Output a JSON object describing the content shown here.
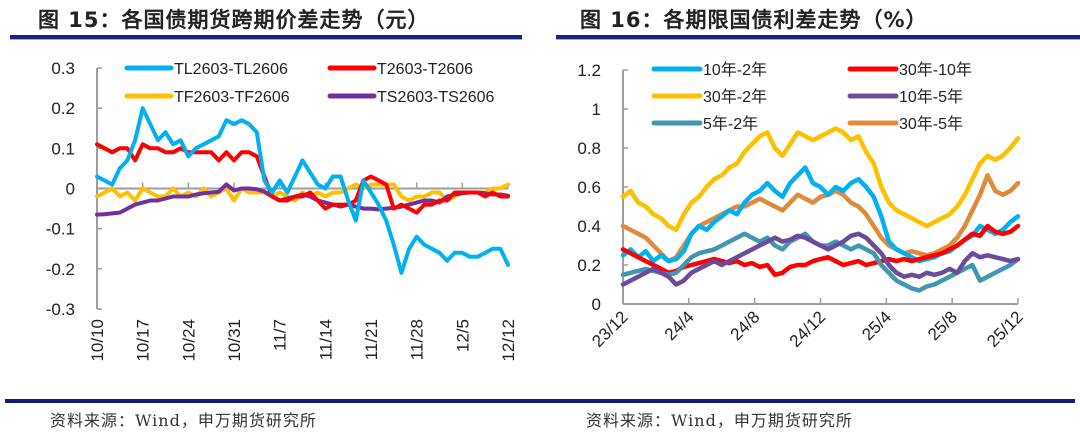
{
  "figures": [
    {
      "title": "图 15：各国债期货跨期价差走势（元）",
      "source": "资料来源：Wind，申万期货研究所"
    },
    {
      "title": "图 16：各期限国债利差走势（%）",
      "source": "资料来源：Wind，申万期货研究所"
    }
  ],
  "chart_data": [
    {
      "type": "line",
      "title": "图 15：各国债期货跨期价差走势（元）",
      "xlabel": "",
      "ylabel": "元",
      "ylim": [
        -0.3,
        0.3
      ],
      "yticks": [
        "0.3",
        "0.2",
        "0.1",
        "0",
        "-0.1",
        "-0.2",
        "-0.3"
      ],
      "ytick_values": [
        0.3,
        0.2,
        0.1,
        0,
        -0.1,
        -0.2,
        -0.3
      ],
      "xticks": [
        "10/10",
        "10/17",
        "10/24",
        "10/31",
        "11/7",
        "11/14",
        "11/21",
        "11/28",
        "12/5",
        "12/12"
      ],
      "grid": false,
      "legend": "top",
      "series": [
        {
          "name": "TL2603-TL2606",
          "color": "#00b0f0",
          "values": [
            0.03,
            0.02,
            0.01,
            0.05,
            0.07,
            0.12,
            0.2,
            0.16,
            0.12,
            0.14,
            0.11,
            0.12,
            0.08,
            0.1,
            0.11,
            0.12,
            0.13,
            0.17,
            0.16,
            0.17,
            0.16,
            0.14,
            0.02,
            -0.01,
            0.02,
            -0.01,
            0.03,
            0.07,
            0.04,
            0.01,
            0.0,
            0.03,
            0.03,
            -0.03,
            -0.08,
            0.02,
            -0.01,
            -0.04,
            -0.08,
            -0.14,
            -0.21,
            -0.15,
            -0.12,
            -0.14,
            -0.15,
            -0.16,
            -0.18,
            -0.16,
            -0.16,
            -0.17,
            -0.17,
            -0.16,
            -0.15,
            -0.15,
            -0.19
          ]
        },
        {
          "name": "T2603-T2606",
          "color": "#ff0000",
          "values": [
            0.11,
            0.1,
            0.09,
            0.1,
            0.1,
            0.07,
            0.11,
            0.1,
            0.1,
            0.09,
            0.09,
            0.1,
            0.09,
            0.09,
            0.09,
            0.09,
            0.07,
            0.09,
            0.07,
            0.09,
            0.09,
            0.08,
            0.03,
            -0.02,
            -0.03,
            -0.03,
            -0.02,
            -0.02,
            -0.01,
            -0.03,
            -0.05,
            -0.04,
            -0.04,
            -0.04,
            -0.03,
            0.02,
            0.03,
            0.02,
            0.01,
            -0.05,
            -0.04,
            -0.05,
            -0.06,
            -0.04,
            -0.04,
            -0.03,
            -0.03,
            -0.01,
            -0.01,
            -0.01,
            -0.01,
            -0.02,
            -0.01,
            -0.02,
            -0.02
          ]
        },
        {
          "name": "TF2603-TF2606",
          "color": "#ffc000",
          "values": [
            -0.02,
            -0.01,
            0.0,
            -0.02,
            -0.01,
            -0.03,
            0.0,
            -0.01,
            -0.02,
            -0.02,
            0.0,
            -0.02,
            -0.01,
            -0.02,
            0.0,
            -0.02,
            -0.01,
            0.0,
            -0.03,
            0.0,
            -0.01,
            -0.01,
            -0.01,
            -0.02,
            -0.01,
            -0.02,
            -0.03,
            -0.01,
            -0.02,
            -0.01,
            -0.02,
            -0.01,
            -0.01,
            0.0,
            0.01,
            0.0,
            0.01,
            0.01,
            0.01,
            0.01,
            -0.02,
            -0.03,
            -0.02,
            -0.02,
            -0.01,
            -0.01,
            -0.03,
            -0.02,
            -0.01,
            -0.01,
            -0.01,
            -0.01,
            0.0,
            0.0,
            0.01
          ]
        },
        {
          "name": "TS2603-TS2606",
          "color": "#7030a0",
          "values": [
            -0.065,
            -0.064,
            -0.062,
            -0.06,
            -0.05,
            -0.04,
            -0.035,
            -0.03,
            -0.03,
            -0.025,
            -0.02,
            -0.02,
            -0.02,
            -0.015,
            -0.012,
            -0.01,
            -0.008,
            0.01,
            -0.005,
            0.0,
            0.0,
            -0.002,
            -0.008,
            -0.02,
            -0.03,
            -0.025,
            -0.02,
            -0.015,
            -0.02,
            -0.03,
            -0.035,
            -0.04,
            -0.045,
            -0.04,
            -0.045,
            -0.05,
            -0.05,
            -0.052,
            -0.05,
            -0.048,
            -0.045,
            -0.04,
            -0.035,
            -0.03,
            -0.03,
            -0.035,
            -0.02,
            -0.015,
            -0.012,
            -0.01,
            -0.01,
            -0.012,
            -0.015,
            -0.015,
            -0.018
          ]
        }
      ]
    },
    {
      "type": "line",
      "title": "图 16：各期限国债利差走势（%）",
      "xlabel": "",
      "ylabel": "%",
      "ylim": [
        0,
        1.2
      ],
      "yticks": [
        "1.2",
        "1",
        "0.8",
        "0.6",
        "0.4",
        "0.2",
        "0"
      ],
      "ytick_values": [
        1.2,
        1.0,
        0.8,
        0.6,
        0.4,
        0.2,
        0
      ],
      "xticks": [
        "23/12",
        "24/4",
        "24/8",
        "24/12",
        "25/4",
        "25/8",
        "25/12"
      ],
      "grid": false,
      "legend": "top",
      "series": [
        {
          "name": "10年-2年",
          "color": "#00b0f0",
          "values": [
            0.25,
            0.28,
            0.24,
            0.27,
            0.22,
            0.25,
            0.22,
            0.23,
            0.27,
            0.36,
            0.4,
            0.38,
            0.42,
            0.45,
            0.48,
            0.46,
            0.52,
            0.56,
            0.58,
            0.62,
            0.58,
            0.55,
            0.62,
            0.66,
            0.7,
            0.62,
            0.6,
            0.56,
            0.6,
            0.58,
            0.62,
            0.64,
            0.6,
            0.55,
            0.45,
            0.32,
            0.28,
            0.26,
            0.24,
            0.22,
            0.23,
            0.24,
            0.26,
            0.27,
            0.3,
            0.33,
            0.35,
            0.4,
            0.38,
            0.36,
            0.38,
            0.42,
            0.45
          ]
        },
        {
          "name": "30年-10年",
          "color": "#ff0000",
          "values": [
            0.28,
            0.26,
            0.24,
            0.22,
            0.2,
            0.18,
            0.16,
            0.17,
            0.19,
            0.2,
            0.21,
            0.22,
            0.23,
            0.22,
            0.21,
            0.22,
            0.2,
            0.21,
            0.19,
            0.2,
            0.15,
            0.16,
            0.19,
            0.2,
            0.2,
            0.22,
            0.23,
            0.24,
            0.22,
            0.2,
            0.21,
            0.22,
            0.2,
            0.21,
            0.22,
            0.23,
            0.22,
            0.23,
            0.22,
            0.23,
            0.24,
            0.25,
            0.26,
            0.28,
            0.3,
            0.33,
            0.36,
            0.35,
            0.4,
            0.37,
            0.36,
            0.37,
            0.4
          ]
        },
        {
          "name": "30年-2年",
          "color": "#ffc000",
          "values": [
            0.55,
            0.58,
            0.52,
            0.5,
            0.46,
            0.44,
            0.4,
            0.38,
            0.46,
            0.52,
            0.55,
            0.6,
            0.64,
            0.66,
            0.7,
            0.72,
            0.78,
            0.82,
            0.86,
            0.88,
            0.8,
            0.76,
            0.82,
            0.88,
            0.86,
            0.84,
            0.86,
            0.88,
            0.9,
            0.88,
            0.84,
            0.86,
            0.78,
            0.72,
            0.6,
            0.52,
            0.48,
            0.46,
            0.44,
            0.42,
            0.4,
            0.42,
            0.44,
            0.46,
            0.5,
            0.56,
            0.64,
            0.72,
            0.76,
            0.74,
            0.76,
            0.8,
            0.85
          ]
        },
        {
          "name": "10年-5年",
          "color": "#6b4c9a",
          "values": [
            0.1,
            0.12,
            0.14,
            0.16,
            0.18,
            0.16,
            0.14,
            0.1,
            0.12,
            0.16,
            0.18,
            0.2,
            0.22,
            0.2,
            0.22,
            0.24,
            0.26,
            0.28,
            0.3,
            0.32,
            0.34,
            0.32,
            0.33,
            0.35,
            0.34,
            0.32,
            0.3,
            0.28,
            0.3,
            0.32,
            0.35,
            0.36,
            0.34,
            0.3,
            0.26,
            0.2,
            0.16,
            0.14,
            0.15,
            0.14,
            0.16,
            0.15,
            0.16,
            0.18,
            0.16,
            0.22,
            0.26,
            0.24,
            0.25,
            0.24,
            0.23,
            0.22,
            0.23
          ]
        },
        {
          "name": "5年-2年",
          "color": "#4197af",
          "values": [
            0.15,
            0.16,
            0.17,
            0.18,
            0.17,
            0.16,
            0.15,
            0.16,
            0.2,
            0.24,
            0.26,
            0.27,
            0.28,
            0.3,
            0.32,
            0.34,
            0.36,
            0.34,
            0.32,
            0.34,
            0.3,
            0.28,
            0.32,
            0.34,
            0.36,
            0.32,
            0.3,
            0.3,
            0.32,
            0.3,
            0.28,
            0.3,
            0.28,
            0.26,
            0.2,
            0.16,
            0.12,
            0.1,
            0.08,
            0.07,
            0.09,
            0.1,
            0.12,
            0.14,
            0.16,
            0.18,
            0.2,
            0.12,
            0.14,
            0.16,
            0.18,
            0.2,
            0.23
          ]
        },
        {
          "name": "30年-5年",
          "color": "#e08a3c",
          "values": [
            0.4,
            0.38,
            0.36,
            0.34,
            0.3,
            0.26,
            0.22,
            0.24,
            0.3,
            0.36,
            0.4,
            0.42,
            0.44,
            0.46,
            0.48,
            0.5,
            0.5,
            0.52,
            0.54,
            0.52,
            0.5,
            0.48,
            0.52,
            0.56,
            0.54,
            0.52,
            0.55,
            0.56,
            0.58,
            0.56,
            0.52,
            0.5,
            0.46,
            0.4,
            0.34,
            0.3,
            0.28,
            0.26,
            0.27,
            0.26,
            0.25,
            0.26,
            0.28,
            0.3,
            0.34,
            0.4,
            0.48,
            0.56,
            0.66,
            0.58,
            0.56,
            0.58,
            0.62
          ]
        }
      ]
    }
  ]
}
